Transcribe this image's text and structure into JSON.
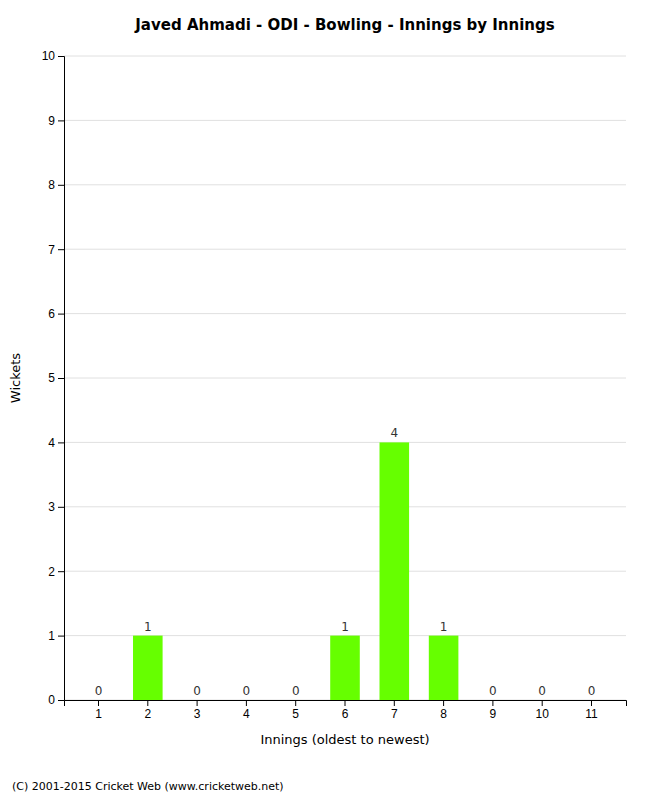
{
  "chart_data": {
    "type": "bar",
    "title": "Javed Ahmadi - ODI - Bowling - Innings by Innings",
    "xlabel": "Innings (oldest to newest)",
    "ylabel": "Wickets",
    "categories": [
      "1",
      "2",
      "3",
      "4",
      "5",
      "6",
      "7",
      "8",
      "9",
      "10",
      "11"
    ],
    "values": [
      0,
      1,
      0,
      0,
      0,
      1,
      4,
      1,
      0,
      0,
      0
    ],
    "color": "#66ff00",
    "ylim": [
      0,
      10
    ],
    "yticks": [
      0,
      1,
      2,
      3,
      4,
      5,
      6,
      7,
      8,
      9,
      10
    ],
    "grid": true,
    "data_labels": true,
    "annotations": [
      "(C) 2001-2015 Cricket Web (www.cricketweb.net)"
    ]
  }
}
